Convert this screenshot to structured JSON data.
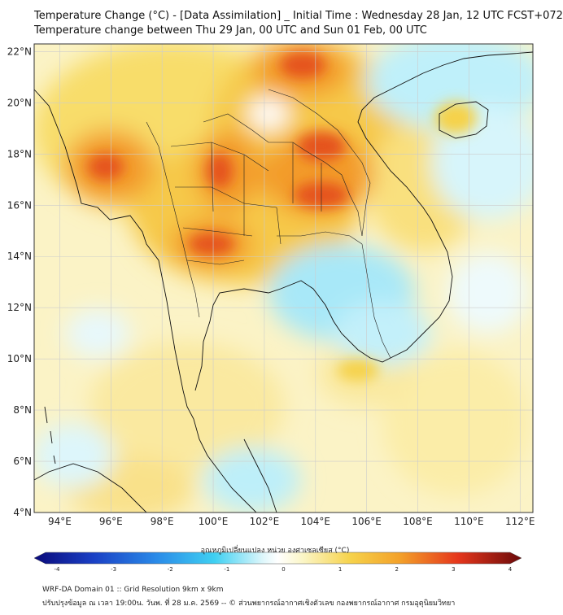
{
  "title": {
    "line1": "Temperature Change (°C) - [Data Assimilation] _ Initial Time : Wednesday 28 Jan, 12 UTC FCST+072",
    "line2": "Temperature change between Thu 29 Jan, 00 UTC and Sun 01 Feb, 00 UTC"
  },
  "map": {
    "lon_ticks": [
      "94°E",
      "96°E",
      "98°E",
      "100°E",
      "102°E",
      "104°E",
      "106°E",
      "108°E",
      "110°E",
      "112°E"
    ],
    "lat_ticks": [
      "22°N",
      "20°N",
      "18°N",
      "16°N",
      "14°N",
      "12°N",
      "10°N",
      "8°N",
      "6°N",
      "4°N"
    ],
    "lon_range": [
      93,
      112.5
    ],
    "lat_range": [
      4,
      22.3
    ]
  },
  "colorbar": {
    "label": "อุณหภูมิเปลี่ยนแปลง หน่วย องศาเซลเซียส (°C)",
    "range": [
      -4,
      4
    ],
    "ticks": [
      "-4",
      "-3",
      "-2",
      "-1",
      "0",
      "1",
      "2",
      "3",
      "4"
    ],
    "colors": {
      "min": "#0a0a7a",
      "cold": "#1a4fd6",
      "cool": "#3fd0f2",
      "near_zero": "#ffffff",
      "warm": "#f6d24a",
      "hot": "#e5361c",
      "max": "#6a0a0a"
    }
  },
  "footer": {
    "line1": "WRF-DA Domain 01 :: Grid Resolution 9km x 9km",
    "line2": "ปรับปรุงข้อมูล ณ เวลา 19:00น. วันพ. ที่ 28 ม.ค. 2569 -- © ส่วนพยากรณ์อากาศเชิงตัวเลข กองพยากรณ์อากาศ กรมอุตุนิยมวิทยา"
  }
}
